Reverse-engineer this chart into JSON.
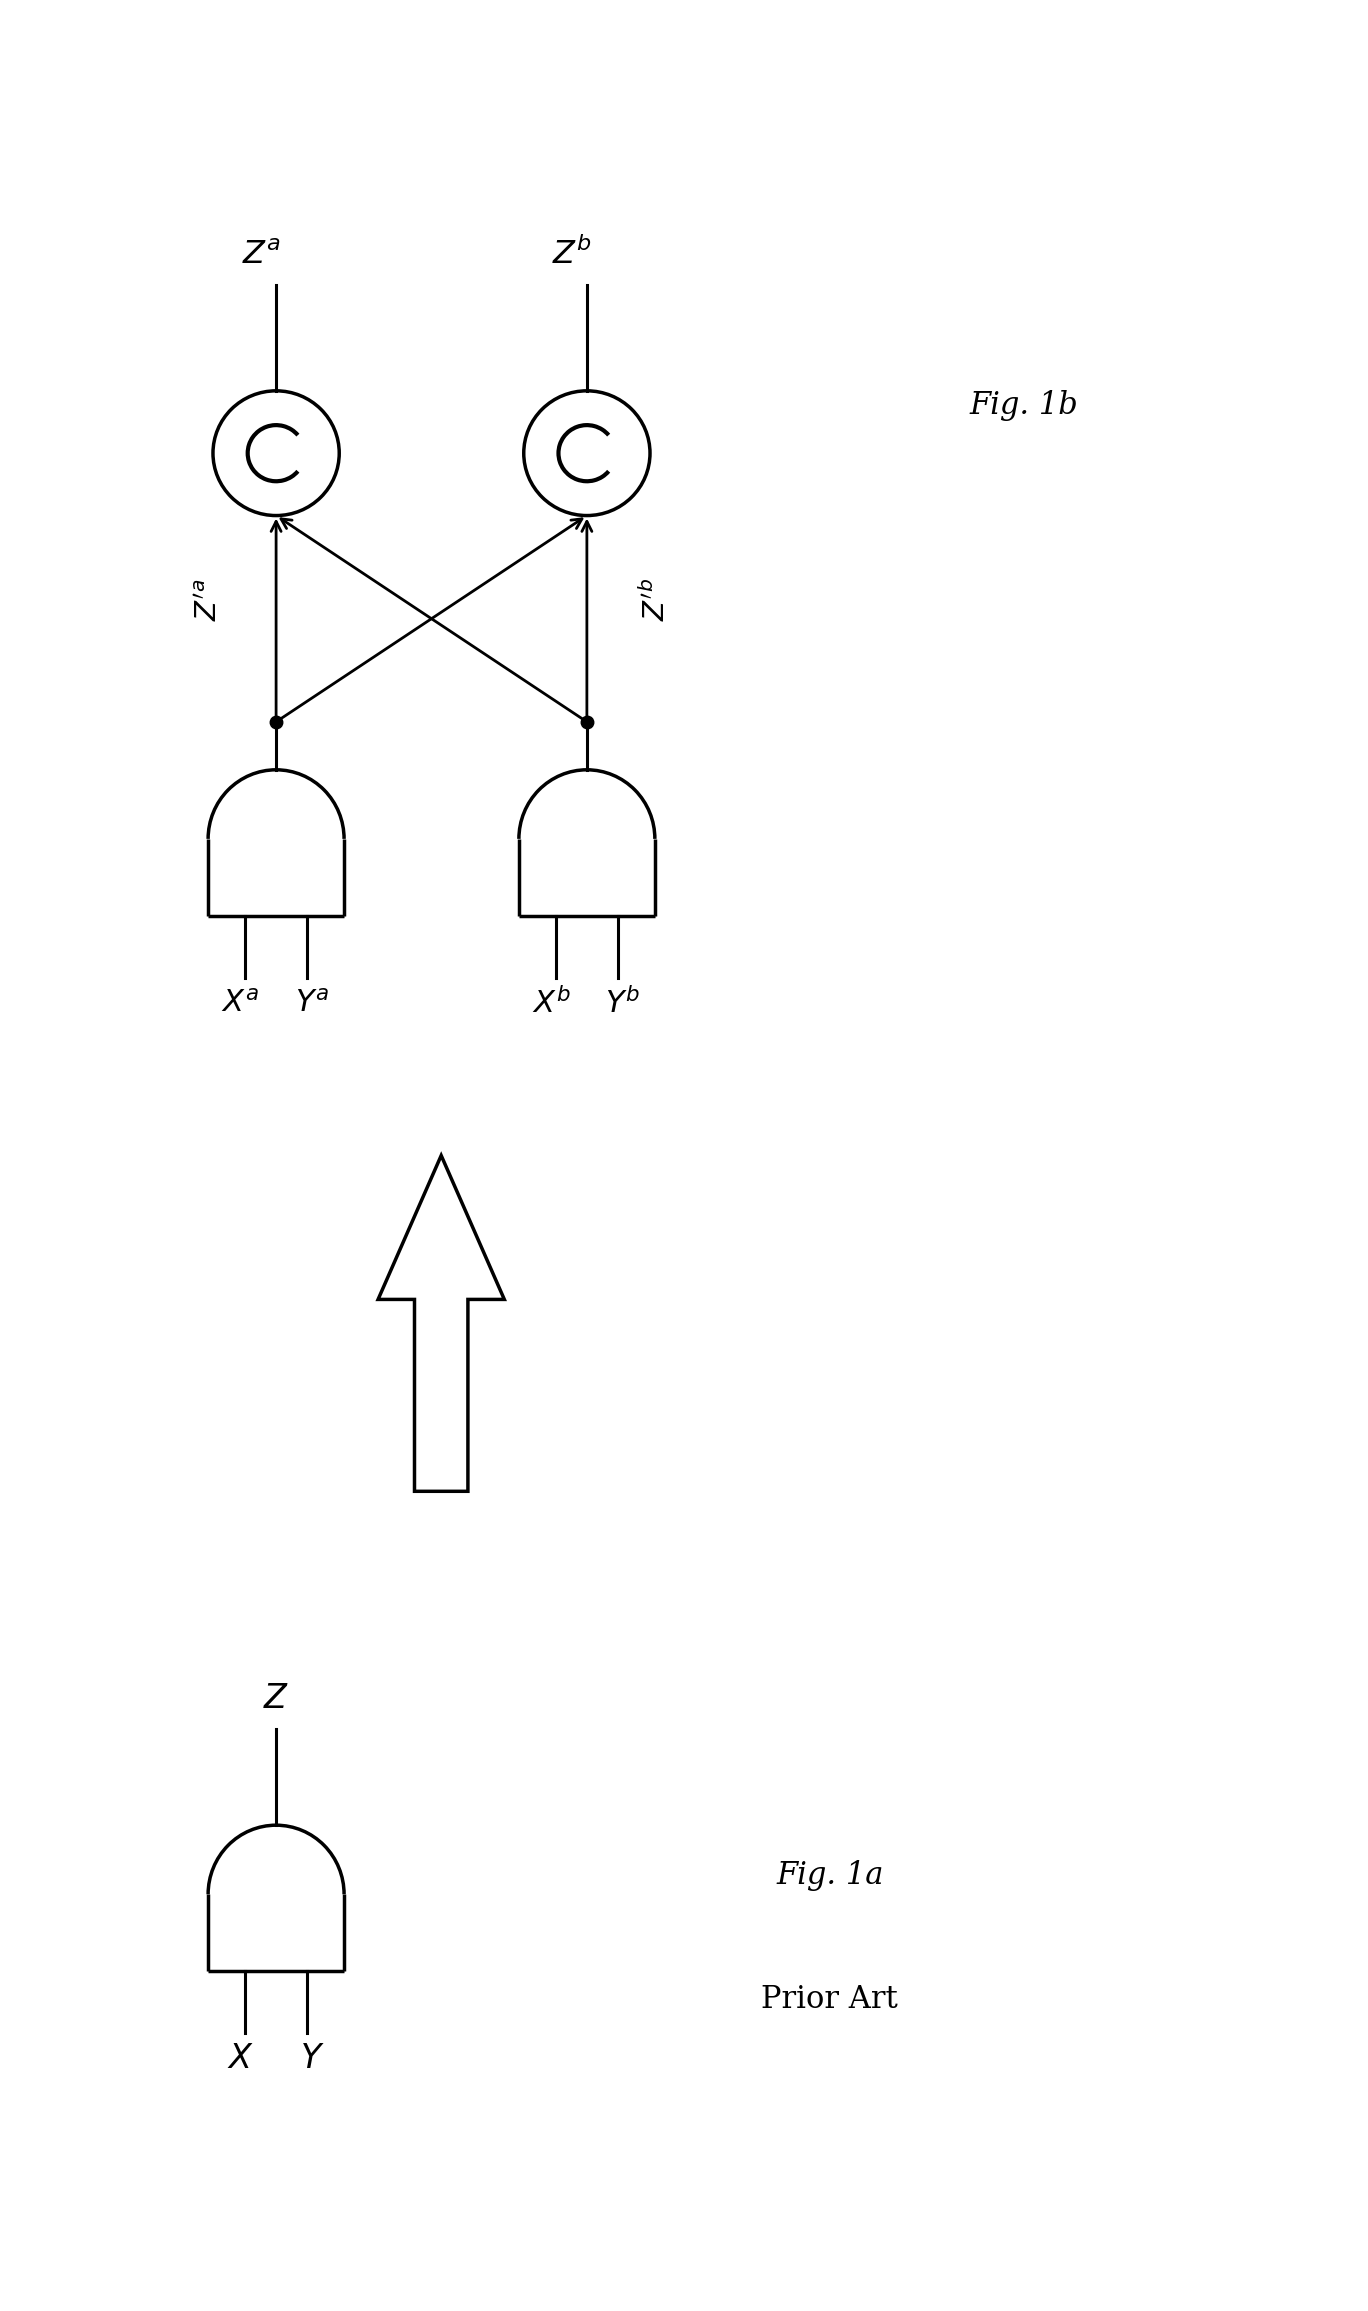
{
  "fig_width": 13.68,
  "fig_height": 23.11,
  "bg_color": "#ffffff",
  "line_color": "#000000",
  "line_width": 2.2,
  "arrow_lw": 2.0,
  "gate_lw": 2.5,
  "fig1b_label": "Fig. 1b",
  "fig1a_label": "Fig. 1a",
  "prior_art_label": "Prior Art",
  "symbol_fontsize": 22,
  "caption_fontsize": 20,
  "xlim": [
    0,
    14
  ],
  "ylim": [
    0,
    24
  ]
}
